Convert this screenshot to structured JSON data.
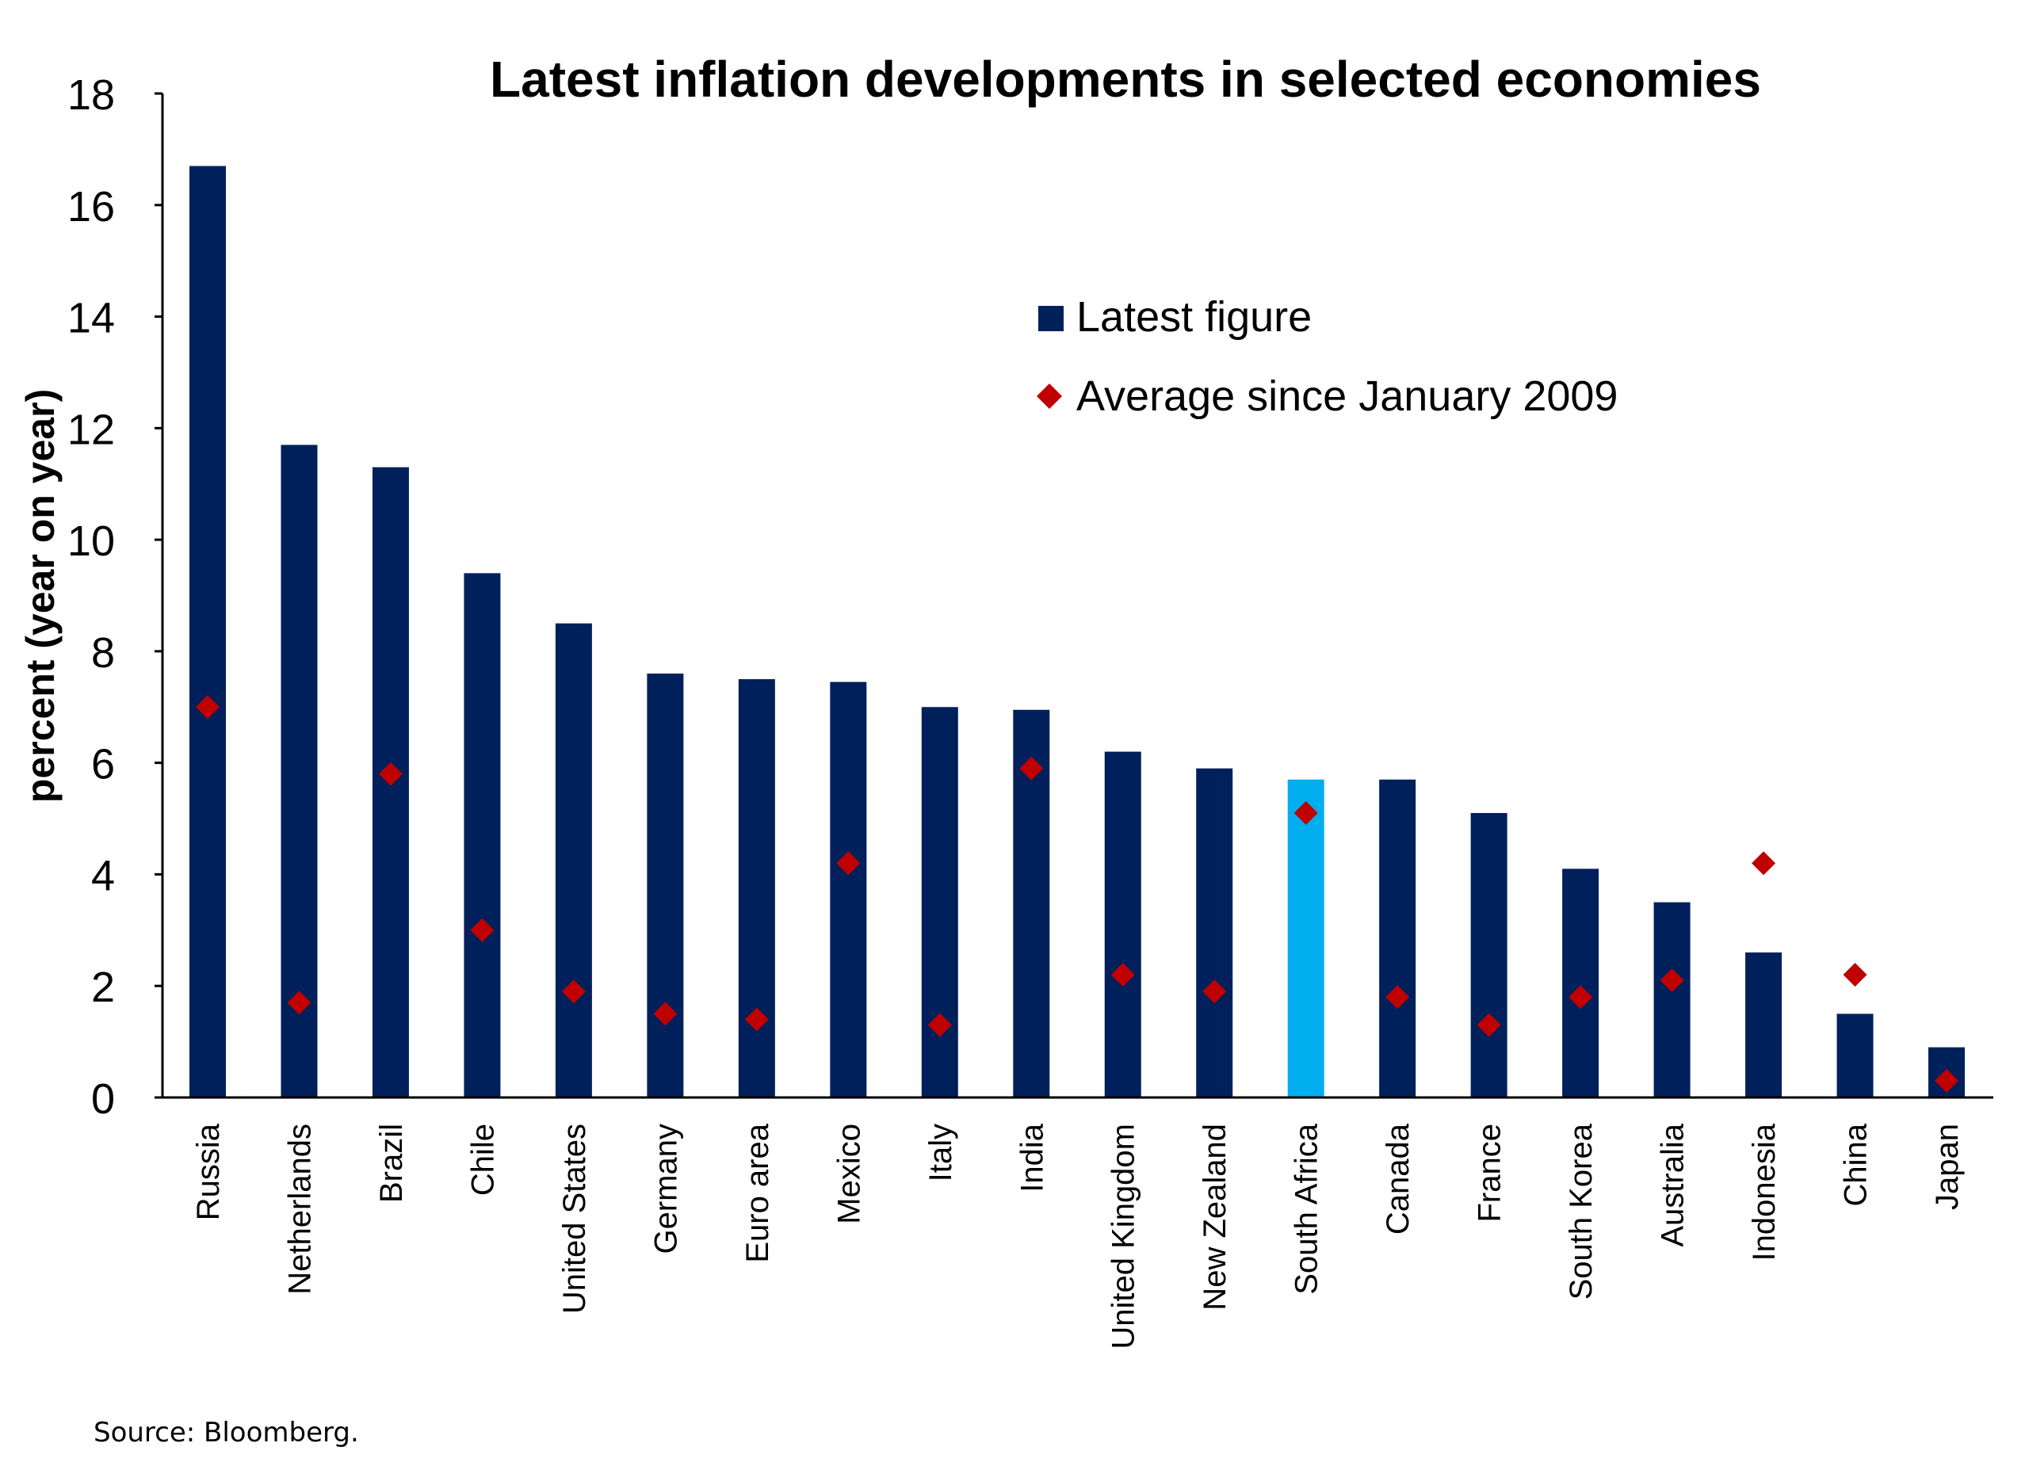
{
  "chart_data": {
    "type": "bar",
    "title": "Latest inflation developments in selected economies",
    "ylabel": "percent (year on year)",
    "xlabel": "",
    "ylim": [
      0,
      18
    ],
    "yticks": [
      0,
      2,
      4,
      6,
      8,
      10,
      12,
      14,
      16,
      18
    ],
    "grid": false,
    "legend_position": "top-right",
    "categories": [
      "Russia",
      "Netherlands",
      "Brazil",
      "Chile",
      "United States",
      "Germany",
      "Euro area",
      "Mexico",
      "Italy",
      "India",
      "United Kingdom",
      "New Zealand",
      "South Africa",
      "Canada",
      "France",
      "South Korea",
      "Australia",
      "Indonesia",
      "China",
      "Japan"
    ],
    "series": [
      {
        "name": "Latest figure",
        "kind": "bar",
        "color": "#00205B",
        "highlight": {
          "category": "South Africa",
          "color": "#00AEEF"
        },
        "values": [
          16.7,
          11.7,
          11.3,
          9.4,
          8.5,
          7.6,
          7.5,
          7.45,
          7.0,
          6.95,
          6.2,
          5.9,
          5.7,
          5.7,
          5.1,
          4.1,
          3.5,
          2.6,
          1.5,
          0.9
        ]
      },
      {
        "name": "Average since January 2009",
        "kind": "marker",
        "marker": "diamond",
        "color": "#C00000",
        "values": [
          7.0,
          1.7,
          5.8,
          3.0,
          1.9,
          1.5,
          1.4,
          4.2,
          1.3,
          5.9,
          2.2,
          1.9,
          5.1,
          1.8,
          1.3,
          1.8,
          2.1,
          4.2,
          2.2,
          0.3
        ]
      }
    ]
  },
  "footer": {
    "source": "Source: Bloomberg."
  }
}
